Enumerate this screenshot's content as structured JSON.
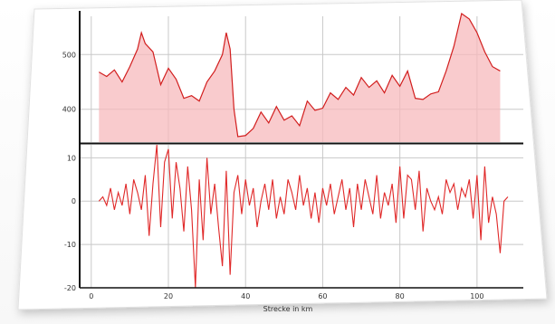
{
  "chart_data": [
    {
      "type": "area",
      "title": "",
      "xlabel": "",
      "ylabel": "",
      "xlim": [
        0,
        112
      ],
      "ylim": [
        340,
        570
      ],
      "yticks": [
        400,
        500
      ],
      "grid": true,
      "colors": {
        "line": "#d21e1e",
        "fill": "#f7b9bc",
        "axis": "#111111",
        "grid": "#c8c8c8"
      },
      "series": [
        {
          "x": [
            2,
            4,
            6,
            8,
            10,
            12,
            13,
            14,
            16,
            18,
            20,
            22,
            24,
            26,
            28,
            30,
            32,
            34,
            35,
            36,
            37,
            38,
            40,
            42,
            44,
            46,
            48,
            50,
            52,
            54,
            56,
            58,
            60,
            62,
            64,
            66,
            68,
            70,
            72,
            74,
            76,
            78,
            80,
            82,
            84,
            86,
            88,
            90,
            92,
            94,
            95,
            96,
            98,
            100,
            102,
            104,
            106
          ],
          "y": [
            468,
            460,
            472,
            450,
            478,
            510,
            540,
            520,
            505,
            445,
            475,
            455,
            420,
            425,
            415,
            450,
            470,
            500,
            540,
            510,
            400,
            350,
            352,
            365,
            395,
            375,
            405,
            380,
            388,
            370,
            415,
            398,
            402,
            430,
            418,
            440,
            426,
            458,
            440,
            452,
            430,
            462,
            442,
            470,
            420,
            418,
            428,
            432,
            470,
            515,
            545,
            575,
            565,
            540,
            505,
            478,
            470
          ]
        }
      ]
    },
    {
      "type": "line",
      "title": "",
      "xlabel": "Strecke in km",
      "ylabel": "",
      "xlim": [
        -3,
        112
      ],
      "ylim": [
        -20,
        13
      ],
      "xticks": [
        0,
        20,
        40,
        60,
        80,
        100
      ],
      "yticks": [
        -20,
        -10,
        0,
        10
      ],
      "grid": true,
      "colors": {
        "line": "#e02828",
        "axis": "#111111",
        "grid": "#c8c8c8"
      },
      "series": [
        {
          "x": [
            2,
            3,
            4,
            5,
            6,
            7,
            8,
            9,
            10,
            11,
            12,
            13,
            14,
            15,
            16,
            17,
            18,
            19,
            20,
            21,
            22,
            23,
            24,
            25,
            26,
            27,
            28,
            29,
            30,
            31,
            32,
            33,
            34,
            35,
            36,
            37,
            38,
            39,
            40,
            41,
            42,
            43,
            44,
            45,
            46,
            47,
            48,
            49,
            50,
            51,
            52,
            53,
            54,
            55,
            56,
            57,
            58,
            59,
            60,
            61,
            62,
            63,
            64,
            65,
            66,
            67,
            68,
            69,
            70,
            71,
            72,
            73,
            74,
            75,
            76,
            77,
            78,
            79,
            80,
            81,
            82,
            83,
            84,
            85,
            86,
            87,
            88,
            89,
            90,
            91,
            92,
            93,
            94,
            95,
            96,
            97,
            98,
            99,
            100,
            101,
            102,
            103,
            104,
            105,
            106,
            107,
            108
          ],
          "y": [
            0,
            1,
            -1,
            3,
            -2,
            2,
            -1,
            4,
            -3,
            5,
            2,
            -2,
            6,
            -8,
            4,
            13,
            -6,
            9,
            12,
            -4,
            9,
            3,
            -7,
            8,
            -2,
            -20,
            5,
            -9,
            10,
            -3,
            4,
            -6,
            -15,
            7,
            -17,
            2,
            6,
            -3,
            5,
            -1,
            3,
            -6,
            0,
            4,
            -2,
            5,
            -4,
            1,
            -3,
            5,
            2,
            -2,
            6,
            -1,
            3,
            -4,
            2,
            -5,
            3,
            -1,
            4,
            -3,
            1,
            5,
            -2,
            3,
            -6,
            4,
            -2,
            5,
            1,
            -3,
            6,
            -4,
            2,
            -1,
            4,
            -5,
            8,
            -4,
            6,
            5,
            -2,
            7,
            -7,
            3,
            0,
            -2,
            1,
            -3,
            5,
            2,
            4,
            -2,
            3,
            1,
            5,
            -4,
            6,
            -9,
            8,
            -5,
            1,
            -3,
            -12,
            0,
            1
          ]
        }
      ]
    }
  ]
}
